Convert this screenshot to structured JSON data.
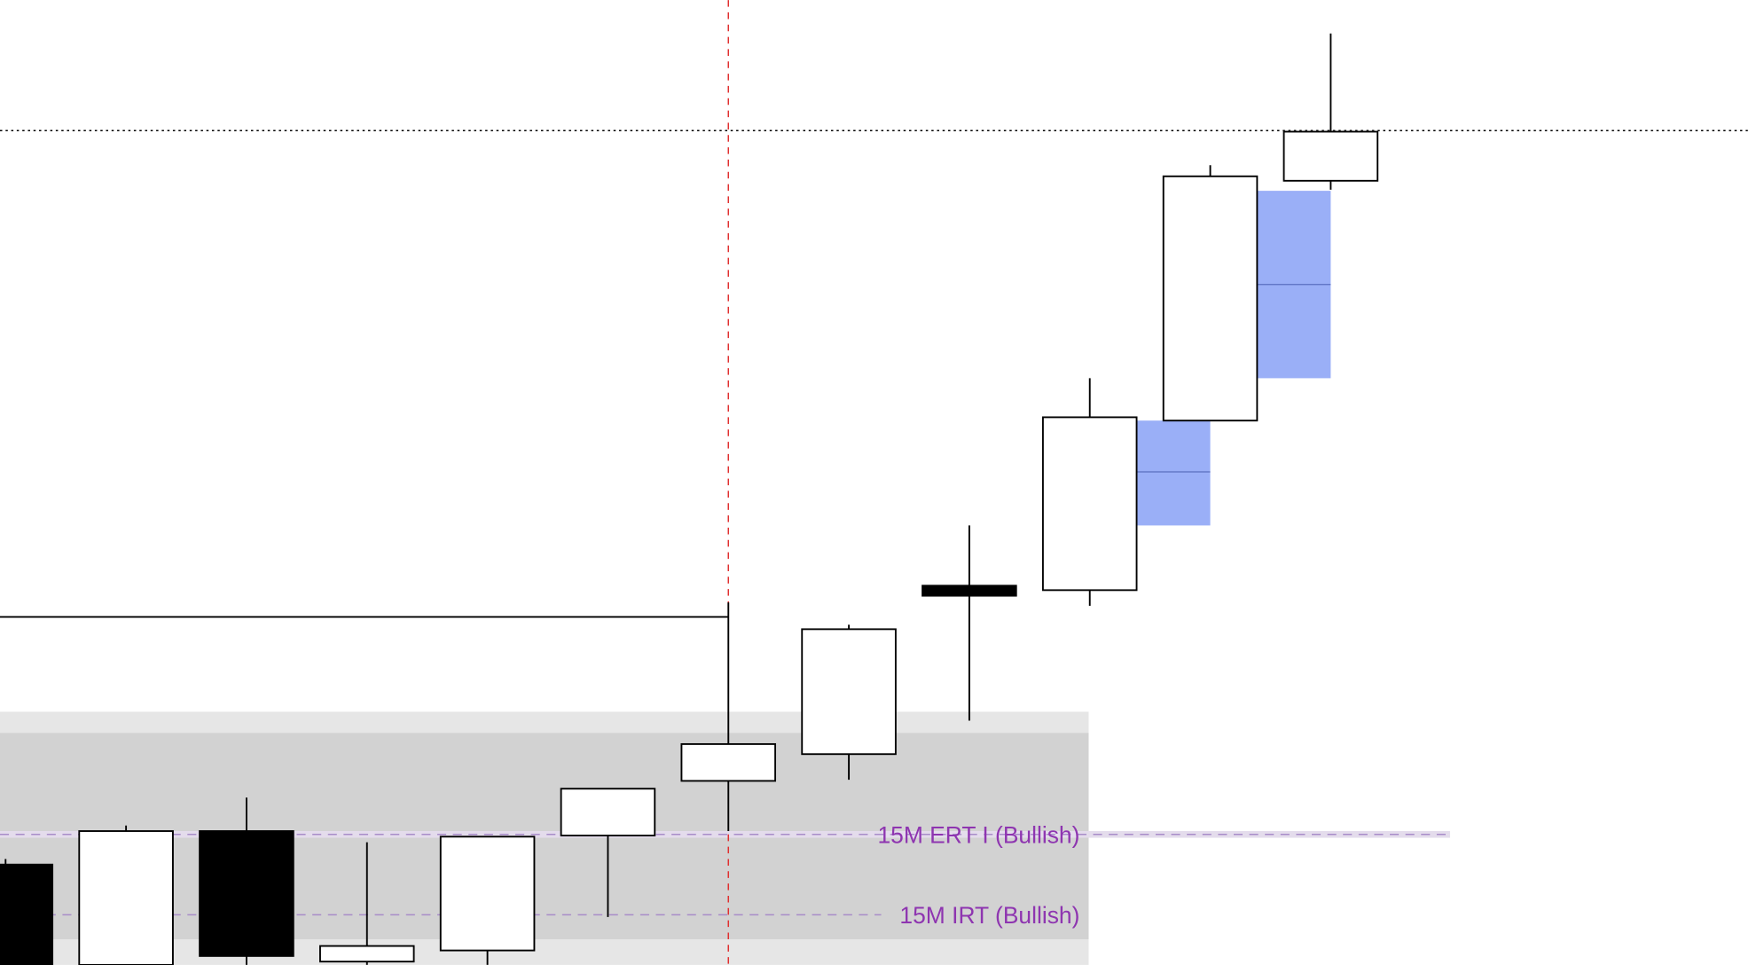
{
  "chart_data": {
    "type": "candlestick",
    "ylim": [
      0,
      865
    ],
    "open": [
      90,
      0,
      120,
      3,
      13,
      116,
      165,
      189,
      340,
      336,
      488,
      703
    ],
    "high": [
      95,
      125,
      150,
      110,
      115,
      158,
      325,
      305,
      394,
      526,
      717,
      835
    ],
    "low": [
      0,
      0,
      0,
      0,
      0,
      43,
      120,
      166,
      219,
      322,
      488,
      695
    ],
    "close": [
      0,
      120,
      8,
      17,
      115,
      158,
      198,
      301,
      331,
      491,
      707,
      747
    ],
    "zones": [
      {
        "top": 227,
        "bottom": 0,
        "color": "#e6e6e6"
      },
      {
        "top": 208,
        "bottom": 23,
        "color": "#d2d2d2"
      }
    ],
    "gaps": [
      {
        "top": 488,
        "bottom": 394,
        "mid": 442,
        "color": "#9aaff7"
      },
      {
        "top": 694,
        "bottom": 526,
        "mid": 610,
        "color": "#9aaff7"
      }
    ],
    "swing_high": 312,
    "dotted_level": 748,
    "annotations": [
      {
        "text": "15M ERT I (Bullish)",
        "value": 117
      },
      {
        "text": "15M IRT (Bullish)",
        "value": 45
      }
    ]
  }
}
